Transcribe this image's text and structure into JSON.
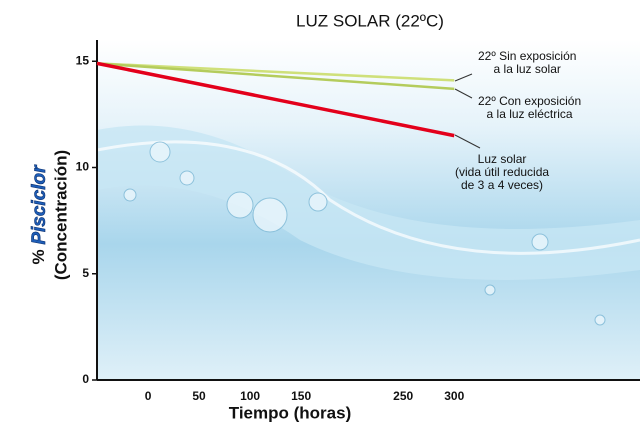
{
  "chart_data": {
    "type": "line",
    "title": "LUZ SOLAR (22ºC)",
    "y_label_prefix": "%",
    "y_label_brand": "Pisciclor",
    "y_label": "(Concentración)",
    "x_label": "Tiempo (horas)",
    "x": [
      -50,
      300
    ],
    "series": [
      {
        "name": "22º Sin exposición\na la luz solar",
        "color": "#cfe07a",
        "values": [
          14.9,
          14.1
        ]
      },
      {
        "name": "22º Con exposición\na la luz eléctrica",
        "color": "#b4cc5c",
        "values": [
          14.9,
          13.7
        ]
      },
      {
        "name": "Luz solar\n(vida útil reducida\nde 3 a 4 veces)",
        "color": "#e3001b",
        "values": [
          14.9,
          11.5
        ]
      }
    ],
    "xlim": [
      -50,
      482
    ],
    "xticks": [
      0,
      50,
      100,
      150,
      250,
      300
    ],
    "ylim": [
      0,
      16
    ],
    "yticks": [
      0,
      5,
      10,
      15
    ]
  }
}
